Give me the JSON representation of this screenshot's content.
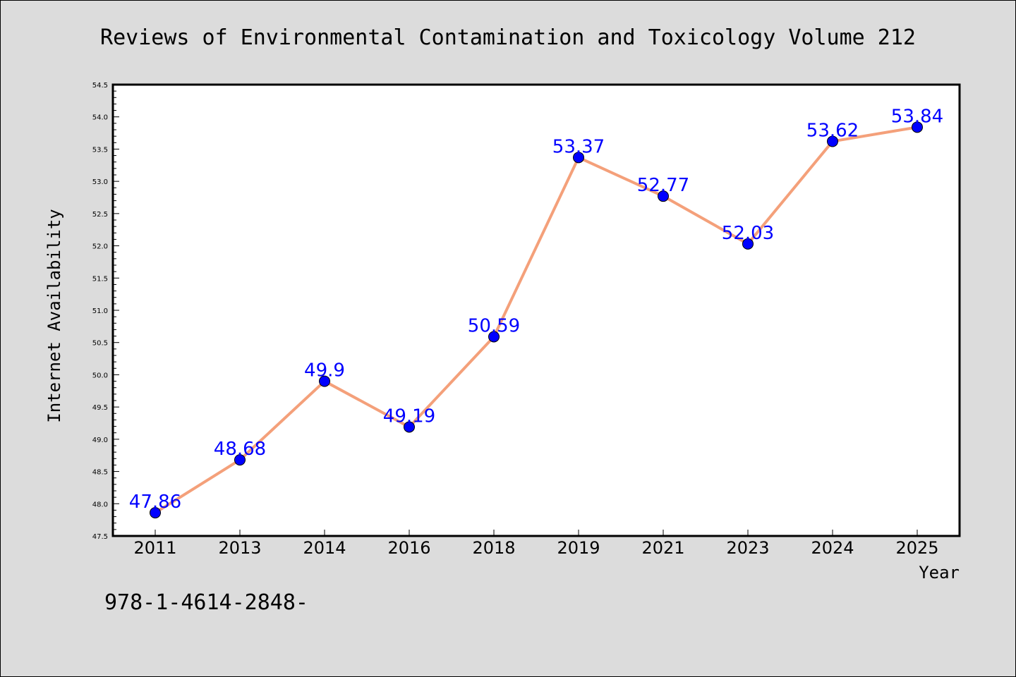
{
  "chart_data": {
    "type": "line",
    "title": "Reviews of Environmental Contamination and Toxicology Volume 212",
    "xlabel": "Year",
    "ylabel": "Internet Availability",
    "categories": [
      "2011",
      "2013",
      "2014",
      "2016",
      "2018",
      "2019",
      "2021",
      "2023",
      "2024",
      "2025"
    ],
    "values": [
      47.86,
      48.68,
      49.9,
      49.19,
      50.59,
      53.37,
      52.77,
      52.03,
      53.62,
      53.84
    ],
    "data_labels": [
      "47.86",
      "48.68",
      "49.9",
      "49.19",
      "50.59",
      "53.37",
      "52.77",
      "52.03",
      "53.62",
      "53.84"
    ],
    "ylim": [
      47.5,
      54.5
    ],
    "yticks": [
      "47.5",
      "48.0",
      "48.5",
      "49.0",
      "49.5",
      "50.0",
      "50.5",
      "51.0",
      "51.5",
      "52.0",
      "52.5",
      "53.0",
      "53.5",
      "54.0",
      "54.5"
    ],
    "grid": false,
    "legend": "none",
    "colors": {
      "line": "#f4a07a",
      "marker": "#0000ff",
      "label": "#0000ff",
      "background": "#dcdcdc",
      "plot_background": "#ffffff"
    }
  },
  "footer": {
    "text": "978-1-4614-2848-"
  }
}
